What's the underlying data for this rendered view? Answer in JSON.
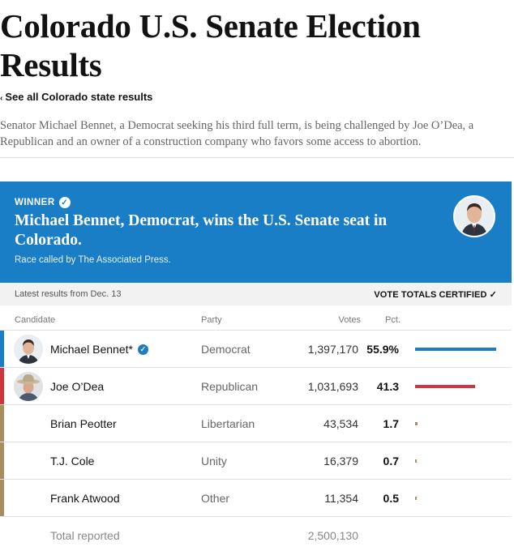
{
  "page": {
    "title": "Colorado U.S. Senate Election Results",
    "back_link": "See all Colorado state results",
    "intro": "Senator Michael Bennet, a Democrat seeking his third full term, is being challenged by Joe O’Dea, a Republican and an owner of a construction company who favors some access to abortion."
  },
  "banner": {
    "label": "WINNER",
    "headline": "Michael Bennet, Democrat, wins the U.S. Senate seat in Colorado.",
    "race_called": "Race called by The Associated Press.",
    "color": "#1a7ec6"
  },
  "status": {
    "latest": "Latest results from Dec. 13",
    "certified": "VOTE TOTALS CERTIFIED"
  },
  "table": {
    "headers": {
      "candidate": "Candidate",
      "party": "Party",
      "votes": "Votes",
      "pct": "Pct."
    },
    "rows": [
      {
        "name": "Michael Bennet*",
        "party": "Democrat",
        "votes": "1,397,170",
        "pct": "55.9%",
        "pct_value": 55.9,
        "color": "#1a7ec6",
        "winner": true,
        "photo": "michael-bennet-photo"
      },
      {
        "name": "Joe O’Dea",
        "party": "Republican",
        "votes": "1,031,693",
        "pct": "41.3",
        "pct_value": 41.3,
        "color": "#d0343f",
        "winner": false,
        "photo": "joe-odea-photo"
      },
      {
        "name": "Brian Peotter",
        "party": "Libertarian",
        "votes": "43,534",
        "pct": "1.7",
        "pct_value": 1.7,
        "color": "#a88d5e",
        "winner": false
      },
      {
        "name": "T.J. Cole",
        "party": "Unity",
        "votes": "16,379",
        "pct": "0.7",
        "pct_value": 0.7,
        "color": "#a88d5e",
        "winner": false
      },
      {
        "name": "Frank Atwood",
        "party": "Other",
        "votes": "11,354",
        "pct": "0.5",
        "pct_value": 0.5,
        "color": "#a88d5e",
        "winner": false
      }
    ],
    "total_label": "Total reported",
    "total_votes": "2,500,130"
  }
}
